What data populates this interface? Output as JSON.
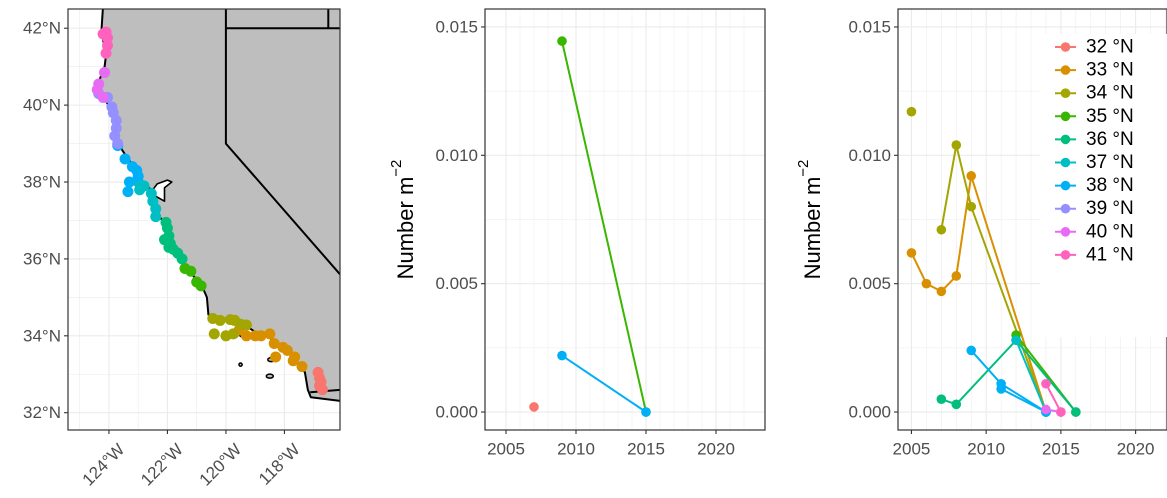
{
  "chart_data": [
    {
      "type": "map",
      "lon_ticks": [
        "124°W",
        "122°W",
        "120°W",
        "118°W"
      ],
      "lat_ticks": [
        "32°N",
        "34°N",
        "36°N",
        "38°N",
        "40°N",
        "42°N"
      ],
      "xlim": [
        -125.4,
        -116.1
      ],
      "ylim": [
        31.55,
        42.5
      ],
      "land_color": "#bebebe",
      "grid": true,
      "series": [
        {
          "lat": 32,
          "points": [
            [
              -116.85,
              33.05
            ],
            [
              -116.8,
              32.9
            ],
            [
              -116.75,
              32.8
            ],
            [
              -116.8,
              32.7
            ],
            [
              -116.7,
              32.6
            ]
          ]
        },
        {
          "lat": 33,
          "points": [
            [
              -119.55,
              34.15
            ],
            [
              -119.3,
              34.0
            ],
            [
              -119.0,
              34.0
            ],
            [
              -118.8,
              34.0
            ],
            [
              -118.5,
              34.05
            ],
            [
              -118.35,
              33.8
            ],
            [
              -118.05,
              33.7
            ],
            [
              -117.9,
              33.62
            ],
            [
              -117.65,
              33.45
            ],
            [
              -117.4,
              33.2
            ],
            [
              -118.3,
              33.45
            ],
            [
              -117.7,
              33.35
            ]
          ]
        },
        {
          "lat": 34,
          "points": [
            [
              -120.45,
              34.45
            ],
            [
              -120.2,
              34.4
            ],
            [
              -119.85,
              34.42
            ],
            [
              -119.7,
              34.4
            ],
            [
              -119.5,
              34.3
            ],
            [
              -119.3,
              34.28
            ],
            [
              -120.4,
              34.05
            ],
            [
              -120.0,
              34.0
            ],
            [
              -119.75,
              34.05
            ]
          ]
        },
        {
          "lat": 35,
          "points": [
            [
              -121.2,
              35.68
            ],
            [
              -121.0,
              35.4
            ],
            [
              -120.85,
              35.3
            ],
            [
              -121.4,
              35.75
            ]
          ]
        },
        {
          "lat": 36,
          "points": [
            [
              -122.05,
              36.95
            ],
            [
              -122.0,
              36.8
            ],
            [
              -121.95,
              36.6
            ],
            [
              -121.9,
              36.4
            ],
            [
              -121.8,
              36.25
            ],
            [
              -121.65,
              36.15
            ],
            [
              -121.5,
              36.0
            ],
            [
              -122.1,
              36.5
            ],
            [
              -121.95,
              36.3
            ]
          ]
        },
        {
          "lat": 37,
          "points": [
            [
              -122.5,
              37.5
            ],
            [
              -122.4,
              37.3
            ],
            [
              -122.4,
              37.1
            ],
            [
              -122.55,
              37.7
            ],
            [
              -122.8,
              37.9
            ],
            [
              -123.0,
              38.0
            ],
            [
              -122.95,
              37.8
            ]
          ]
        },
        {
          "lat": 38,
          "points": [
            [
              -123.45,
              38.6
            ],
            [
              -123.2,
              38.4
            ],
            [
              -123.05,
              38.3
            ],
            [
              -123.0,
              38.15
            ],
            [
              -123.35,
              37.75
            ],
            [
              -123.3,
              38.0
            ],
            [
              -123.7,
              38.95
            ]
          ]
        },
        {
          "lat": 39,
          "points": [
            [
              -124.05,
              40.2
            ],
            [
              -123.9,
              39.95
            ],
            [
              -123.85,
              39.8
            ],
            [
              -123.75,
              39.6
            ],
            [
              -123.75,
              39.4
            ],
            [
              -123.8,
              39.2
            ],
            [
              -123.7,
              39.0
            ],
            [
              -124.35,
              40.3
            ]
          ]
        },
        {
          "lat": 40,
          "points": [
            [
              -124.35,
              40.55
            ],
            [
              -124.4,
              40.4
            ],
            [
              -124.2,
              40.2
            ],
            [
              -124.15,
              40.85
            ]
          ]
        },
        {
          "lat": 41,
          "points": [
            [
              -124.1,
              41.9
            ],
            [
              -124.2,
              41.85
            ],
            [
              -124.05,
              41.75
            ],
            [
              -124.05,
              41.55
            ],
            [
              -124.1,
              41.35
            ]
          ]
        }
      ]
    },
    {
      "type": "line",
      "ylabel": "Number m",
      "ylabel_sup": "−2",
      "xlim": [
        2003.5,
        2023.5
      ],
      "ylim": [
        -0.0007,
        0.0157
      ],
      "x_ticks": [
        2005,
        2010,
        2015,
        2020
      ],
      "y_ticks": [
        "0.000",
        "0.005",
        "0.010",
        "0.015"
      ],
      "grid": true,
      "series": [
        {
          "lat": 32,
          "x": [
            2007
          ],
          "y": [
            0.0002
          ]
        },
        {
          "lat": 35,
          "x": [
            2009,
            2015
          ],
          "y": [
            0.01445,
            0.0
          ]
        },
        {
          "lat": 38,
          "x": [
            2009,
            2015
          ],
          "y": [
            0.0022,
            0.0
          ]
        }
      ]
    },
    {
      "type": "line",
      "ylabel": "Number m",
      "ylabel_sup": "−2",
      "xlim": [
        2004.1,
        2022.1
      ],
      "ylim": [
        -0.0007,
        0.0157
      ],
      "x_ticks": [
        2005,
        2010,
        2015,
        2020
      ],
      "y_ticks": [
        "0.000",
        "0.005",
        "0.010",
        "0.015"
      ],
      "grid": true,
      "legend_position": "right",
      "series": [
        {
          "lat": 33,
          "x": [
            2005,
            2006,
            2007,
            2008,
            2009,
            2014
          ],
          "y": [
            0.0062,
            0.005,
            0.0047,
            0.0053,
            0.0092,
            0.0
          ]
        },
        {
          "lat": 34,
          "x": [
            2005
          ],
          "y": [
            0.0117
          ]
        },
        {
          "lat": 34,
          "x": [
            2007,
            2008,
            2009,
            2014
          ],
          "y": [
            0.0071,
            0.0104,
            0.008,
            0.0
          ]
        },
        {
          "lat": 35,
          "x": [
            2012,
            2016
          ],
          "y": [
            0.003,
            0.0
          ]
        },
        {
          "lat": 36,
          "x": [
            2007,
            2008,
            2012,
            2016
          ],
          "y": [
            0.0005,
            0.0003,
            0.0028,
            0.0
          ]
        },
        {
          "lat": 37,
          "x": [
            2012,
            2014
          ],
          "y": [
            0.0028,
            0.0
          ]
        },
        {
          "lat": 38,
          "x": [
            2009,
            2011,
            2014
          ],
          "y": [
            0.0024,
            0.0011,
            0.0
          ]
        },
        {
          "lat": 38,
          "x": [
            2011,
            2014
          ],
          "y": [
            0.0009,
            0.0
          ]
        },
        {
          "lat": 40,
          "x": [
            2014,
            2015
          ],
          "y": [
            0.0001,
            0.0
          ]
        },
        {
          "lat": 41,
          "x": [
            2014,
            2015
          ],
          "y": [
            0.0011,
            0.0
          ]
        }
      ]
    }
  ],
  "legend": {
    "items": [
      {
        "lat": 32,
        "label": "32 °N",
        "color": "#F8766D"
      },
      {
        "lat": 33,
        "label": "33 °N",
        "color": "#D89000"
      },
      {
        "lat": 34,
        "label": "34 °N",
        "color": "#A3A500"
      },
      {
        "lat": 35,
        "label": "35 °N",
        "color": "#39B600"
      },
      {
        "lat": 36,
        "label": "36 °N",
        "color": "#00BF7D"
      },
      {
        "lat": 37,
        "label": "37 °N",
        "color": "#00BFC4"
      },
      {
        "lat": 38,
        "label": "38 °N",
        "color": "#00B0F6"
      },
      {
        "lat": 39,
        "label": "39 °N",
        "color": "#9590FF"
      },
      {
        "lat": 40,
        "label": "40 °N",
        "color": "#E76BF3"
      },
      {
        "lat": 41,
        "label": "41 °N",
        "color": "#FF62BC"
      }
    ]
  }
}
